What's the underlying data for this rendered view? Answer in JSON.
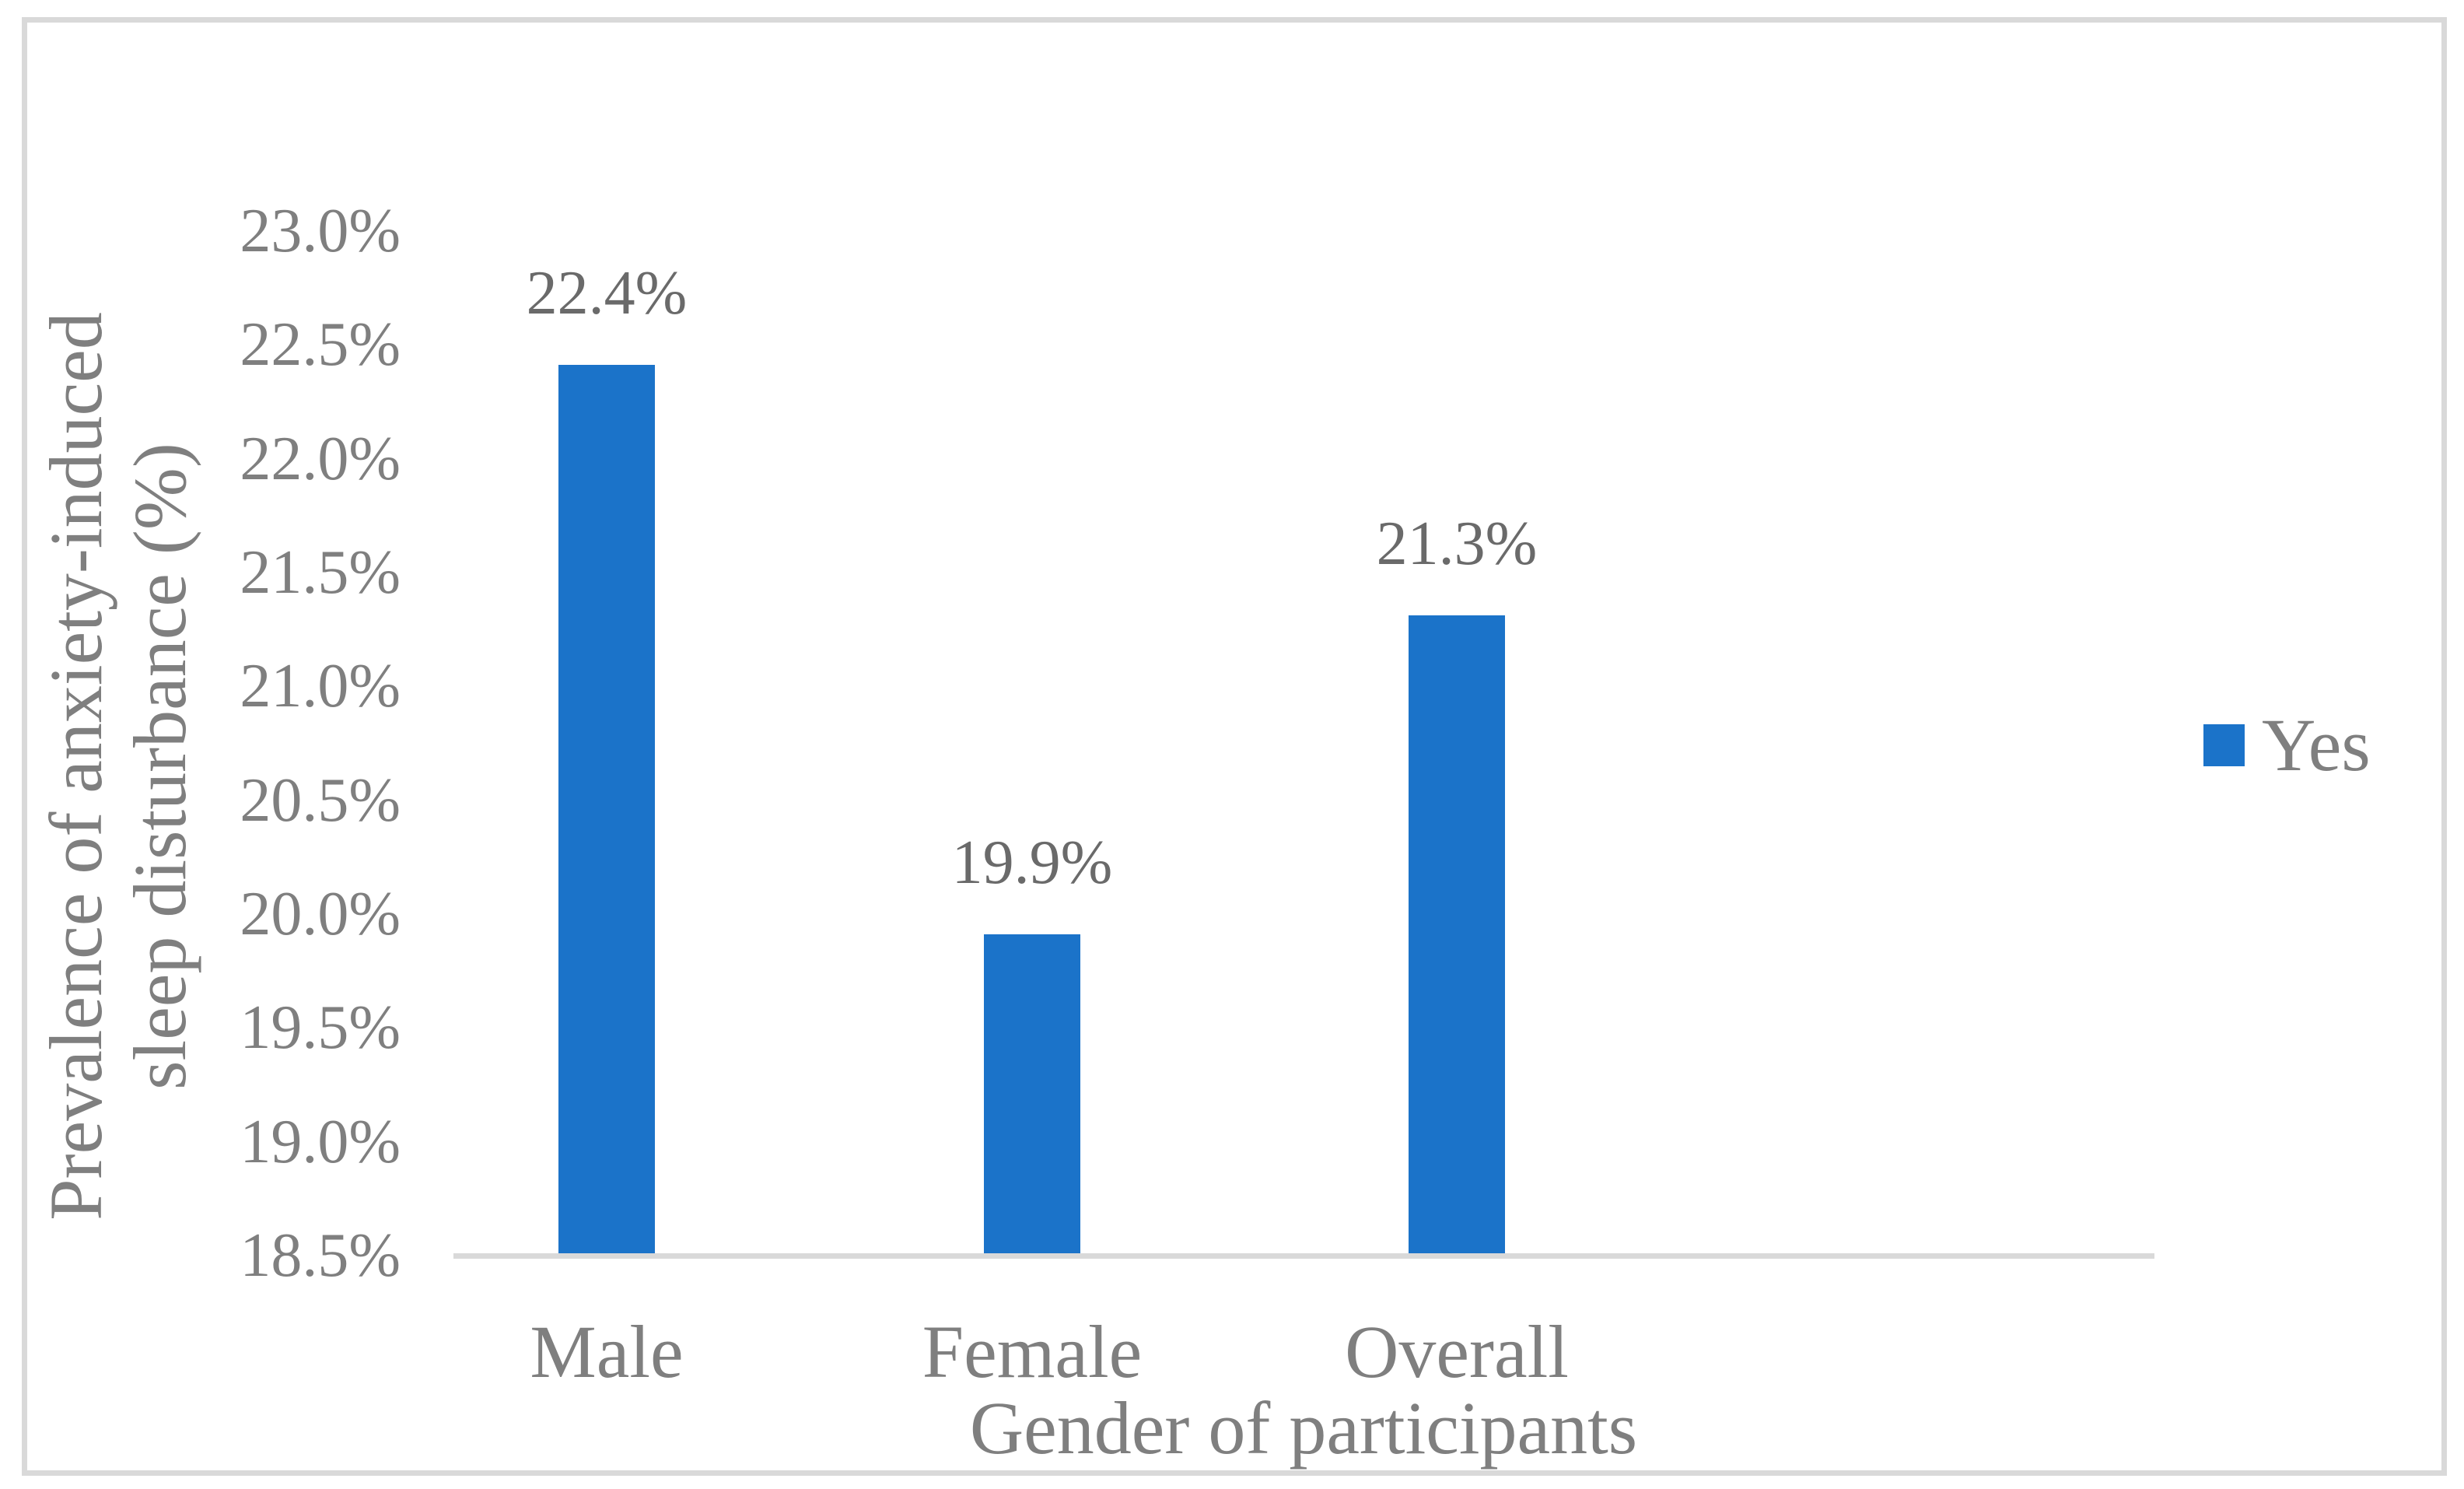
{
  "chart_data": {
    "type": "bar",
    "title": "",
    "categories": [
      "Male",
      "Female",
      "Overall"
    ],
    "series": [
      {
        "name": "Yes",
        "values": [
          22.4,
          19.9,
          21.3
        ]
      }
    ],
    "data_labels": [
      "22.4%",
      "19.9%",
      "21.3%"
    ],
    "xlabel": "Gender of participants",
    "ylabel": "Prevalence of anxiety-induced sleep disturbance (%)",
    "ylabel_lines": [
      "Prevalence of anxiety-induced",
      "sleep disturbance (%)"
    ],
    "ylim": [
      18.5,
      23.0
    ],
    "ytick_step": 0.5,
    "yticks": [
      "23.0%",
      "22.5%",
      "22.0%",
      "21.5%",
      "21.0%",
      "20.5%",
      "20.0%",
      "19.5%",
      "19.0%",
      "18.5%"
    ],
    "grid": false,
    "legend": {
      "position": "right",
      "entries": [
        {
          "label": "Yes",
          "color": "#1B73C9"
        }
      ]
    },
    "colors": {
      "bar": "#1B73C9",
      "axis_line": "#D9D9D9",
      "frame_border": "#D9D9D9",
      "axis_text": "#7F7F7F",
      "data_label_text": "#6A6A6A"
    }
  }
}
